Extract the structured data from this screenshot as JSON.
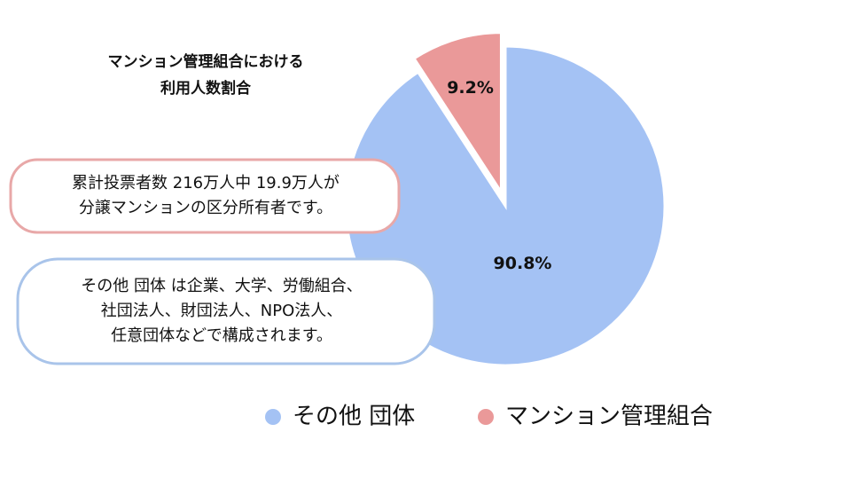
{
  "chart_data": {
    "type": "pie",
    "title": [
      "マンション管理組合における",
      "利用人数割合"
    ],
    "categories": [
      "その他 団体",
      "マンション管理組合"
    ],
    "values": [
      90.8,
      9.2
    ],
    "value_labels": [
      "90.8%",
      "9.2%"
    ],
    "colors": [
      "#a4c2f4",
      "#ea9999"
    ],
    "exploded": [
      false,
      true
    ],
    "legend": "bottom",
    "annotations": [
      {
        "lines": [
          "累計投票者数 216万人中 19.9万人が",
          "分譲マンションの区分所有者です。"
        ],
        "color": "#e8a8a8"
      },
      {
        "lines": [
          "その他 団体 は企業、大学、労働組合、",
          "社団法人、財団法人、NPO法人、",
          "任意団体などで構成されます。"
        ],
        "color": "#a9c4ea"
      }
    ]
  }
}
